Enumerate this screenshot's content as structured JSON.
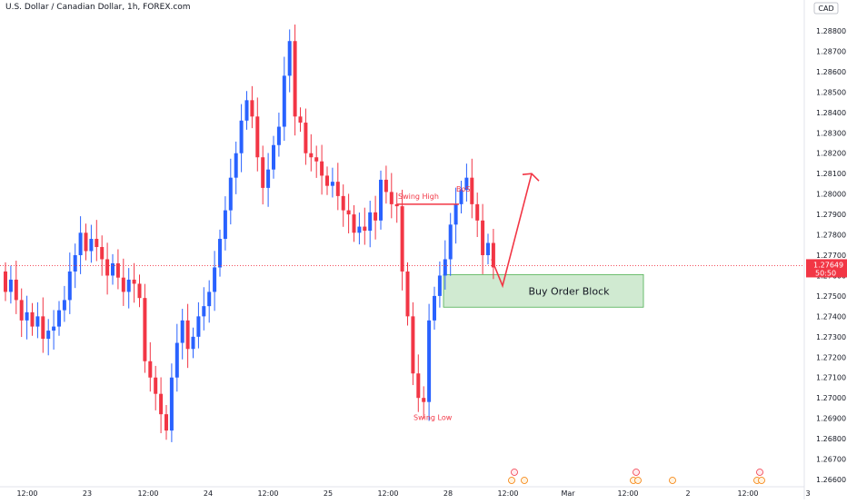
{
  "header": {
    "title": "U.S. Dollar / Canadian Dollar, 1h, FOREX.com"
  },
  "price_axis": {
    "currency": "CAD",
    "tick_labels": [
      "1.28800",
      "1.28700",
      "1.28600",
      "1.28500",
      "1.28400",
      "1.28300",
      "1.28200",
      "1.28100",
      "1.28000",
      "1.27900",
      "1.27800",
      "1.27700",
      "1.27600",
      "1.27500",
      "1.27400",
      "1.27300",
      "1.27200",
      "1.27100",
      "1.27000",
      "1.26900",
      "1.26800",
      "1.26700",
      "1.26600"
    ],
    "current_price": "1.27649",
    "countdown": "50:50"
  },
  "time_axis": {
    "tick_labels": [
      "12:00",
      "23",
      "12:00",
      "24",
      "12:00",
      "25",
      "12:00",
      "28",
      "12:00",
      "Mar",
      "12:00",
      "2",
      "12:00",
      "3"
    ]
  },
  "annotations": {
    "swing_high": "Swing High",
    "bos": "BoS",
    "swing_low": "Swing Low",
    "order_block": "Buy Order Block"
  },
  "colors": {
    "up": "#2962ff",
    "down": "#f23645",
    "order_block_fill": "#c8e6c9",
    "order_block_border": "#4caf50",
    "arrow": "#f23645",
    "price_label_bg": "#f23645"
  },
  "chart_data": {
    "type": "candlestick",
    "title": "U.S. Dollar / Canadian Dollar, 1h, FOREX.com",
    "y_unit": "CAD",
    "ylim": [
      1.2655,
      1.2895
    ],
    "x_ticks": [
      "12:00",
      "23",
      "12:00",
      "24",
      "12:00",
      "25",
      "12:00",
      "28",
      "12:00",
      "Mar",
      "12:00",
      "2",
      "12:00",
      "3"
    ],
    "closes": [
      1.2752,
      1.2758,
      1.2748,
      1.2738,
      1.2742,
      1.2735,
      1.274,
      1.2729,
      1.2733,
      1.2735,
      1.2743,
      1.2748,
      1.2762,
      1.277,
      1.2781,
      1.2772,
      1.2778,
      1.2774,
      1.2768,
      1.276,
      1.2766,
      1.2759,
      1.2752,
      1.2758,
      1.2756,
      1.2749,
      1.2718,
      1.271,
      1.2702,
      1.2692,
      1.2684,
      1.271,
      1.2727,
      1.2738,
      1.2724,
      1.273,
      1.274,
      1.2745,
      1.2752,
      1.2764,
      1.2778,
      1.2792,
      1.2808,
      1.282,
      1.2836,
      1.2846,
      1.2838,
      1.2818,
      1.2803,
      1.2812,
      1.2824,
      1.2833,
      1.2858,
      1.2875,
      1.2838,
      1.2835,
      1.282,
      1.2818,
      1.2816,
      1.2809,
      1.2804,
      1.2806,
      1.2799,
      1.2792,
      1.279,
      1.2781,
      1.2784,
      1.2782,
      1.2791,
      1.2787,
      1.2807,
      1.2801,
      1.2795,
      1.2794,
      1.2762,
      1.274,
      1.2712,
      1.27,
      1.2698,
      1.2738,
      1.275,
      1.276,
      1.2768,
      1.2785,
      1.2795,
      1.2802,
      1.2808,
      1.2795,
      1.2787,
      1.277,
      1.2776,
      1.2764
    ],
    "candle_colors": "blue = up, red = down",
    "annotations": [
      {
        "text": "Swing High",
        "price": 1.2795
      },
      {
        "text": "BoS",
        "price": 1.2795
      },
      {
        "text": "Swing Low",
        "price": 1.2698
      },
      {
        "text": "Buy Order Block",
        "price_range": [
          1.27445,
          1.27605
        ]
      }
    ],
    "projected_path": [
      1.2768,
      1.2755,
      1.281
    ],
    "current_price": 1.27649,
    "grid": false
  }
}
